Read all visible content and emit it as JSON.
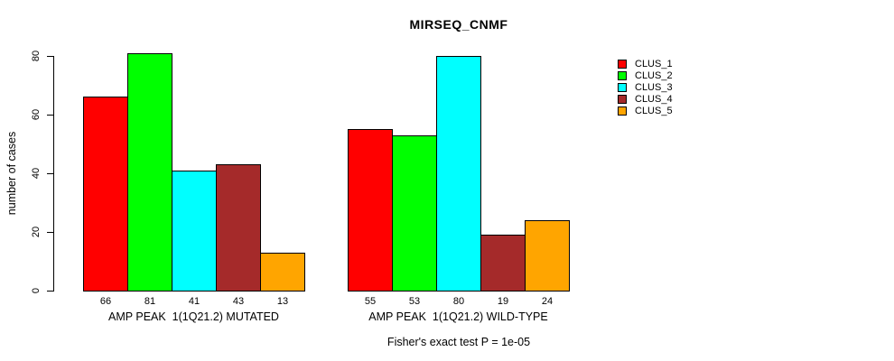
{
  "page": {
    "background": "#FFFFFF"
  },
  "chart_data": {
    "type": "bar",
    "title": "MIRSEQ_CNMF",
    "ylabel": "number of cases",
    "xlabel": "",
    "ylim": [
      0,
      80
    ],
    "yticks": [
      0,
      20,
      40,
      60,
      80
    ],
    "grid": false,
    "bar_border_color": "#000000",
    "value_labels": true,
    "legend_position": "right",
    "categories": [
      "AMP PEAK  1(1Q21.2) MUTATED",
      "AMP PEAK  1(1Q21.2) WILD-TYPE"
    ],
    "series": [
      {
        "name": "CLUS_1",
        "color": "#FF0000",
        "values": [
          66,
          55
        ]
      },
      {
        "name": "CLUS_2",
        "color": "#00FF00",
        "values": [
          81,
          53
        ]
      },
      {
        "name": "CLUS_3",
        "color": "#00FFFF",
        "values": [
          41,
          80
        ]
      },
      {
        "name": "CLUS_4",
        "color": "#A52A2A",
        "values": [
          43,
          19
        ]
      },
      {
        "name": "CLUS_5",
        "color": "#FFA500",
        "values": [
          13,
          24
        ]
      }
    ],
    "annotation": "Fisher's exact test P = 1e-05"
  }
}
